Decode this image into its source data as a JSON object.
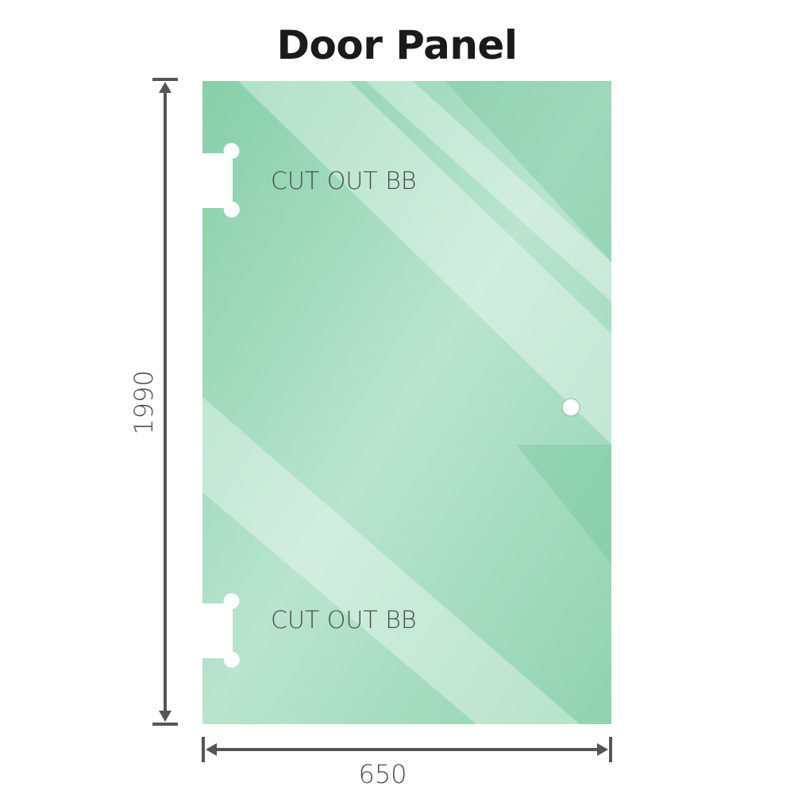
{
  "title": "Door Panel",
  "cutout_top_label": "CUT OUT BB",
  "cutout_bottom_label": "CUT OUT BB",
  "height_dimension": "1990",
  "width_dimension": "650",
  "colors": {
    "glass": "#8fd3b0",
    "glass_light": "#b9e4cf",
    "dimension_line": "#555555",
    "label_text": "#4a4f4c"
  }
}
